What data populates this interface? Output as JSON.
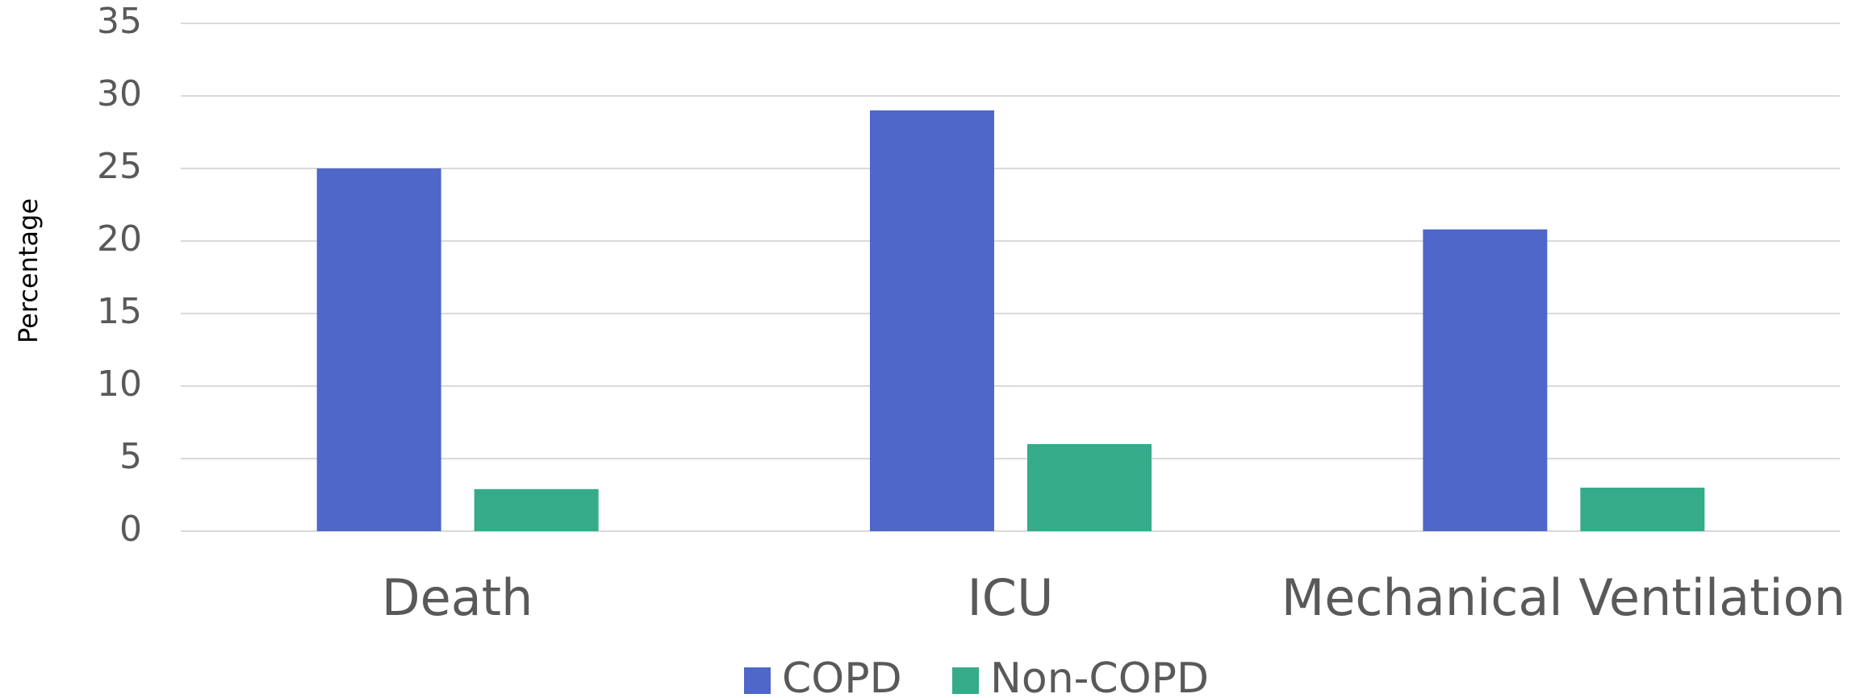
{
  "chart_data": {
    "type": "bar",
    "y_label": "Percentage",
    "categories": [
      "Death",
      "ICU",
      "Mechanical Ventilation"
    ],
    "series": [
      {
        "name": "COPD",
        "color": "#4f67c9",
        "values": [
          25,
          29,
          20.8
        ]
      },
      {
        "name": "Non-COPD",
        "color": "#35ab8a",
        "values": [
          2.9,
          6,
          3.0
        ]
      }
    ],
    "ylim": [
      0,
      35
    ],
    "yticks": [
      0,
      5,
      10,
      15,
      20,
      25,
      30,
      35
    ],
    "grid": true,
    "legend": "bottom"
  }
}
